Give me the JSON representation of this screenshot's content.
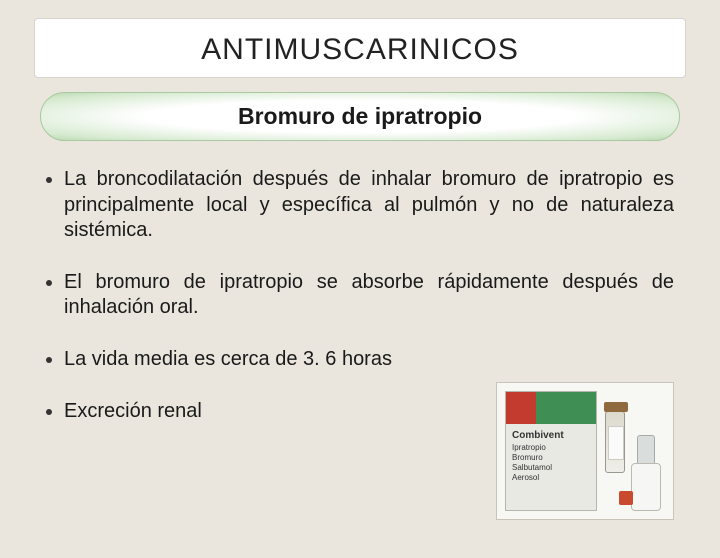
{
  "title": "ANTIMUSCARINICOS",
  "subtitle": "Bromuro de ipratropio",
  "bullets": [
    "La broncodilatación después de inhalar bromuro de ipratropio es principalmente local y específica al pulmón y no de naturaleza sistémica.",
    "El bromuro de ipratropio se absorbe rápidamente después de inhalación oral.",
    "La vida media es cerca de 3. 6 horas",
    "Excreción renal"
  ],
  "product": {
    "brand": "Combivent",
    "lines": [
      "Ipratropio",
      "Bromuro",
      "Salbutamol",
      "Aerosol"
    ],
    "box_colors": {
      "left": "#c23b2e",
      "right": "#3f8f54"
    },
    "inhaler_accent": "#c94a2f"
  },
  "colors": {
    "page_bg": "#ebe6dd",
    "title_box_bg": "#ffffff",
    "pill_border": "#a9c9a0",
    "text": "#1a1a1a"
  }
}
